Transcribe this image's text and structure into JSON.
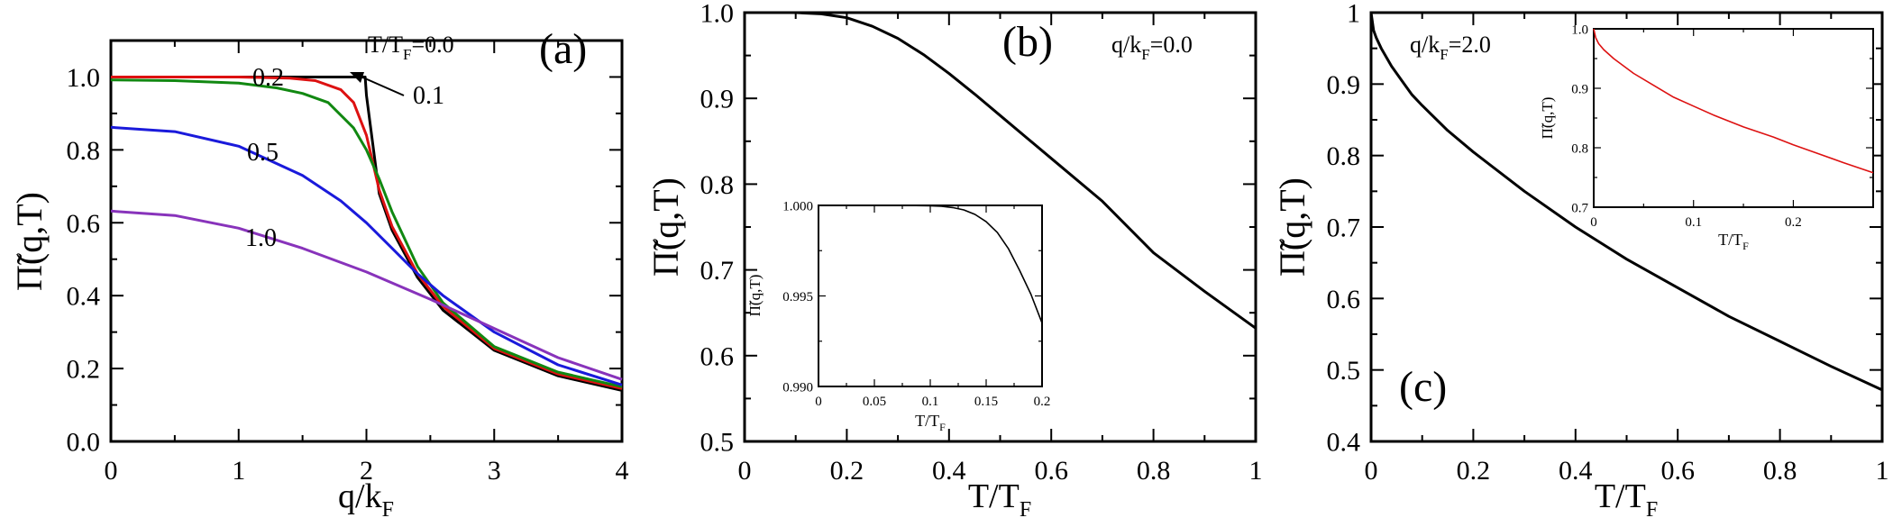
{
  "chart_data": [
    {
      "type": "line",
      "panel_label": "(a)",
      "xlabel": "q/k",
      "xlabel_sub": "F",
      "ylabel": "Π̃(q,T)",
      "xlim": [
        0,
        4
      ],
      "ylim": [
        0,
        1.1
      ],
      "xticks": [
        0,
        1,
        2,
        3,
        4
      ],
      "xtick_labels": [
        "0",
        "1",
        "2",
        "3",
        "4"
      ],
      "yticks": [
        0,
        0.2,
        0.4,
        0.6,
        0.8,
        1.0
      ],
      "ytick_labels": [
        "0.0",
        "0.2",
        "0.4",
        "0.6",
        "0.8",
        "1.0"
      ],
      "series_title": "T/T",
      "series_title_sub": "F",
      "series": [
        {
          "name": "=0.0",
          "color": "#000000",
          "x": [
            0,
            0.5,
            1.0,
            1.5,
            1.99,
            2.0,
            2.1,
            2.2,
            2.4,
            2.6,
            3.0,
            3.5,
            4.0
          ],
          "y": [
            1.0,
            1.0,
            1.0,
            1.0,
            1.0,
            0.95,
            0.68,
            0.58,
            0.45,
            0.36,
            0.25,
            0.18,
            0.14
          ]
        },
        {
          "name": "0.1",
          "color": "#dd1111",
          "x": [
            0,
            0.5,
            1.0,
            1.4,
            1.6,
            1.8,
            1.9,
            2.0,
            2.1,
            2.2,
            2.4,
            2.6,
            3.0,
            3.5,
            4.0
          ],
          "y": [
            1.0,
            1.0,
            1.0,
            0.997,
            0.99,
            0.965,
            0.93,
            0.84,
            0.69,
            0.59,
            0.46,
            0.37,
            0.255,
            0.185,
            0.145
          ]
        },
        {
          "name": "0.2",
          "color": "#118811",
          "x": [
            0,
            0.5,
            1.0,
            1.3,
            1.5,
            1.7,
            1.9,
            2.0,
            2.1,
            2.2,
            2.4,
            2.6,
            3.0,
            3.5,
            4.0
          ],
          "y": [
            0.992,
            0.99,
            0.983,
            0.97,
            0.955,
            0.93,
            0.86,
            0.8,
            0.72,
            0.63,
            0.48,
            0.38,
            0.26,
            0.19,
            0.15
          ]
        },
        {
          "name": "0.5",
          "color": "#1a1adb",
          "x": [
            0,
            0.5,
            1.0,
            1.5,
            1.8,
            2.0,
            2.2,
            2.4,
            2.6,
            3.0,
            3.5,
            4.0
          ],
          "y": [
            0.862,
            0.85,
            0.81,
            0.73,
            0.66,
            0.6,
            0.53,
            0.46,
            0.4,
            0.3,
            0.21,
            0.155
          ]
        },
        {
          "name": "1.0",
          "color": "#8833bb",
          "x": [
            0,
            0.5,
            1.0,
            1.5,
            2.0,
            2.5,
            3.0,
            3.5,
            4.0
          ],
          "y": [
            0.632,
            0.62,
            0.585,
            0.53,
            0.465,
            0.39,
            0.31,
            0.23,
            0.17
          ]
        }
      ],
      "labels": {
        "t00": "=0.0",
        "t01": "0.1",
        "t02": "0.2",
        "t05": "0.5",
        "t10": "1.0"
      }
    },
    {
      "type": "line",
      "panel_label": "(b)",
      "annotation": "q/k",
      "annotation_sub": "F",
      "annotation_tail": "=0.0",
      "xlabel": "T/T",
      "xlabel_sub": "F",
      "ylabel": "Π̃(q,T)",
      "xlim": [
        0,
        1
      ],
      "ylim": [
        0.5,
        1.0
      ],
      "xticks": [
        0,
        0.2,
        0.4,
        0.6,
        0.8,
        1.0
      ],
      "xtick_labels": [
        "0",
        "0.2",
        "0.4",
        "0.6",
        "0.8",
        "1"
      ],
      "yticks": [
        0.5,
        0.6,
        0.7,
        0.8,
        0.9,
        1.0
      ],
      "ytick_labels": [
        "0.5",
        "0.6",
        "0.7",
        "0.8",
        "0.9",
        "1.0"
      ],
      "series": [
        {
          "color": "#000000",
          "x": [
            0,
            0.05,
            0.1,
            0.15,
            0.2,
            0.25,
            0.3,
            0.35,
            0.4,
            0.45,
            0.5,
            0.6,
            0.7,
            0.8,
            0.9,
            1.0
          ],
          "y": [
            1.0,
            1.0,
            1.0,
            0.9985,
            0.994,
            0.984,
            0.97,
            0.951,
            0.929,
            0.905,
            0.88,
            0.83,
            0.78,
            0.72,
            0.675,
            0.632
          ]
        }
      ],
      "inset": {
        "xlabel": "T/T",
        "xlabel_sub": "F",
        "ylabel": "Π̃(q,T)",
        "xlim": [
          0,
          0.2
        ],
        "ylim": [
          0.99,
          1.0
        ],
        "xticks": [
          0,
          0.05,
          0.1,
          0.15,
          0.2
        ],
        "xtick_labels": [
          "0",
          "0.05",
          "0.1",
          "0.15",
          "0.2"
        ],
        "yticks": [
          0.99,
          0.995,
          1.0
        ],
        "ytick_labels": [
          "0.990",
          "0.995",
          "1.000"
        ],
        "series": [
          {
            "color": "#000000",
            "x": [
              0,
              0.05,
              0.08,
              0.1,
              0.11,
              0.12,
              0.13,
              0.14,
              0.15,
              0.16,
              0.17,
              0.18,
              0.19,
              0.2
            ],
            "y": [
              1.0,
              1.0,
              1.0,
              0.99998,
              0.99995,
              0.99988,
              0.99975,
              0.9995,
              0.9991,
              0.9985,
              0.9976,
              0.9964,
              0.9951,
              0.9935
            ]
          }
        ]
      }
    },
    {
      "type": "line",
      "panel_label": "(c)",
      "annotation": "q/k",
      "annotation_sub": "F",
      "annotation_tail": "=2.0",
      "xlabel": "T/T",
      "xlabel_sub": "F",
      "ylabel": "Π̃(q,T)",
      "xlim": [
        0,
        1
      ],
      "ylim": [
        0.4,
        1.0
      ],
      "xticks": [
        0,
        0.2,
        0.4,
        0.6,
        0.8,
        1.0
      ],
      "xtick_labels": [
        "0",
        "0.2",
        "0.4",
        "0.6",
        "0.8",
        "1"
      ],
      "yticks": [
        0.4,
        0.5,
        0.6,
        0.7,
        0.8,
        0.9,
        1.0
      ],
      "ytick_labels": [
        "0.4",
        "0.5",
        "0.6",
        "0.7",
        "0.8",
        "0.9",
        "1"
      ],
      "series": [
        {
          "color": "#000000",
          "x": [
            0,
            0.005,
            0.01,
            0.02,
            0.04,
            0.06,
            0.08,
            0.1,
            0.15,
            0.2,
            0.3,
            0.4,
            0.5,
            0.6,
            0.7,
            0.8,
            0.9,
            1.0
          ],
          "y": [
            1.0,
            0.975,
            0.965,
            0.95,
            0.925,
            0.905,
            0.885,
            0.87,
            0.835,
            0.805,
            0.75,
            0.7,
            0.655,
            0.615,
            0.575,
            0.54,
            0.505,
            0.472
          ]
        }
      ],
      "inset": {
        "xlabel": "T/T",
        "xlabel_sub": "F",
        "ylabel": "Π̃(q,T)",
        "xlim": [
          0,
          0.28
        ],
        "ylim": [
          0.7,
          1.0
        ],
        "xticks": [
          0,
          0.1,
          0.2
        ],
        "xtick_labels": [
          "0",
          "0.1",
          "0.2"
        ],
        "yticks": [
          0.7,
          0.8,
          0.9,
          1.0
        ],
        "ytick_labels": [
          "0.7",
          "0.8",
          "0.9",
          "1.0"
        ],
        "series": [
          {
            "color": "#dd1111",
            "x": [
              0,
              0.002,
              0.005,
              0.01,
              0.02,
              0.04,
              0.06,
              0.08,
              0.1,
              0.12,
              0.15,
              0.18,
              0.2,
              0.22,
              0.25,
              0.28
            ],
            "y": [
              1.0,
              0.985,
              0.975,
              0.965,
              0.95,
              0.925,
              0.905,
              0.885,
              0.87,
              0.855,
              0.835,
              0.818,
              0.805,
              0.793,
              0.775,
              0.758
            ]
          }
        ]
      }
    }
  ]
}
